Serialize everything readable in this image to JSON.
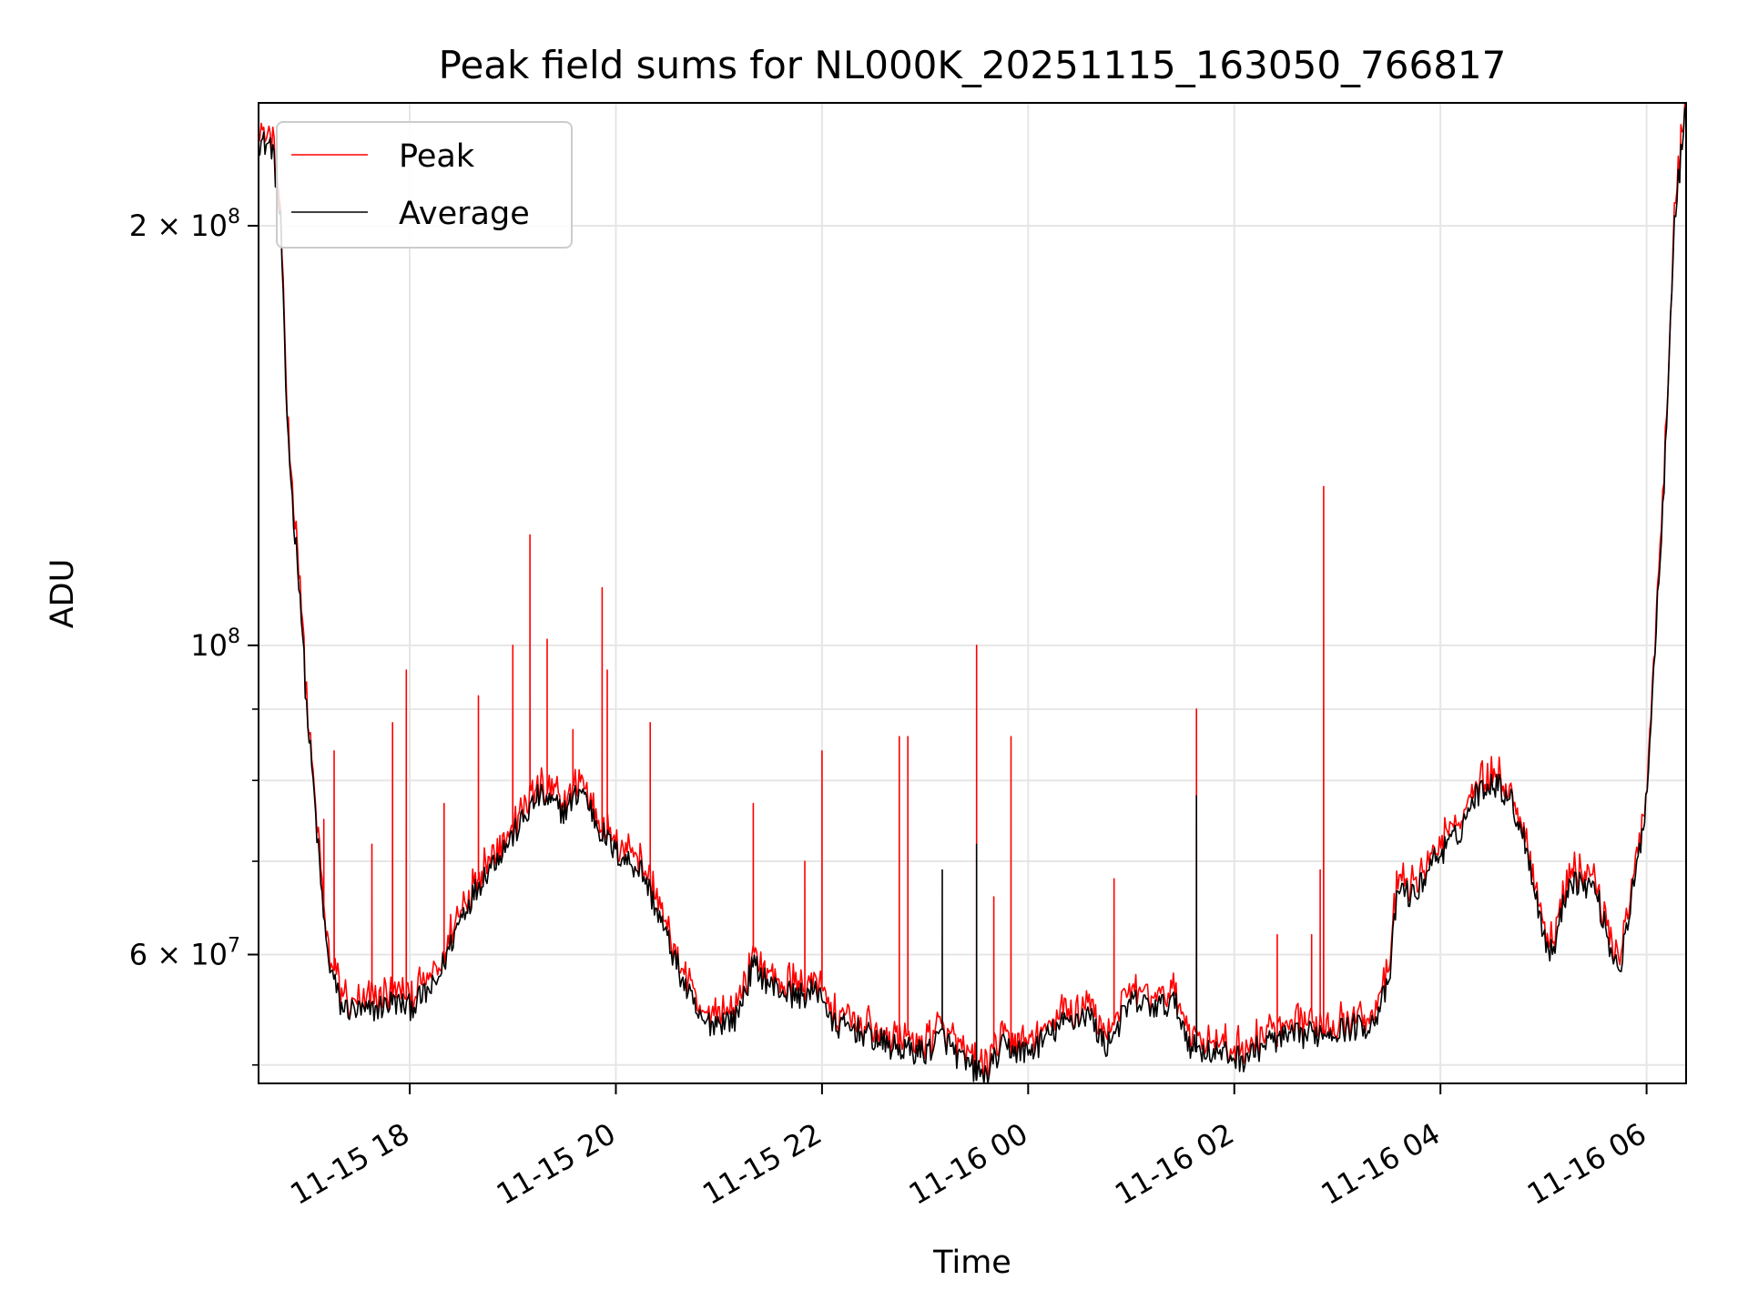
{
  "chart_data": {
    "type": "line",
    "title": "Peak field sums for NL000K_20251115_163050_766817",
    "xlabel": "Time",
    "ylabel": "ADU",
    "yscale": "log",
    "xlim": [
      "2025-11-15 16:32",
      "2025-11-16 06:23"
    ],
    "ylim": [
      48500000,
      245000000
    ],
    "grid": true,
    "legend_position": "upper-left",
    "x_ticks": [
      {
        "t": "2025-11-15 18:00",
        "label": "11-15 18"
      },
      {
        "t": "2025-11-15 20:00",
        "label": "11-15 20"
      },
      {
        "t": "2025-11-15 22:00",
        "label": "11-15 22"
      },
      {
        "t": "2025-11-16 00:00",
        "label": "11-16 00"
      },
      {
        "t": "2025-11-16 02:00",
        "label": "11-16 02"
      },
      {
        "t": "2025-11-16 04:00",
        "label": "11-16 04"
      },
      {
        "t": "2025-11-16 06:00",
        "label": "11-16 06"
      }
    ],
    "y_major_ticks": [
      {
        "value": 60000000,
        "mantissa": "6",
        "label": "6 × 10^7"
      },
      {
        "value": 100000000,
        "mantissa": "",
        "label": "10^8"
      },
      {
        "value": 200000000,
        "mantissa": "2",
        "label": "2 × 10^8"
      }
    ],
    "y_minor_ticks": [
      50000000,
      70000000,
      80000000,
      90000000
    ],
    "series": [
      {
        "name": "Peak",
        "color": "#ff0000",
        "anchors": [
          [
            "2025-11-15 16:32",
            230000000
          ],
          [
            "2025-11-15 16:40",
            228000000
          ],
          [
            "2025-11-15 16:45",
            200000000
          ],
          [
            "2025-11-15 16:48",
            150000000
          ],
          [
            "2025-11-15 16:52",
            125000000
          ],
          [
            "2025-11-15 16:56",
            110000000
          ],
          [
            "2025-11-15 17:00",
            90000000
          ],
          [
            "2025-11-15 17:04",
            79000000
          ],
          [
            "2025-11-15 17:08",
            68000000
          ],
          [
            "2025-11-15 17:12",
            60000000
          ],
          [
            "2025-11-15 17:20",
            55000000
          ],
          [
            "2025-11-15 17:35",
            54500000
          ],
          [
            "2025-11-15 17:50",
            55500000
          ],
          [
            "2025-11-15 18:00",
            55000000
          ],
          [
            "2025-11-15 18:15",
            57000000
          ],
          [
            "2025-11-15 18:30",
            64000000
          ],
          [
            "2025-11-15 18:45",
            69000000
          ],
          [
            "2025-11-15 19:00",
            73000000
          ],
          [
            "2025-11-15 19:15",
            78000000
          ],
          [
            "2025-11-15 19:30",
            76000000
          ],
          [
            "2025-11-15 19:40",
            79000000
          ],
          [
            "2025-11-15 19:50",
            74000000
          ],
          [
            "2025-11-15 20:00",
            71000000
          ],
          [
            "2025-11-15 20:15",
            69000000
          ],
          [
            "2025-11-15 20:25",
            64000000
          ],
          [
            "2025-11-15 20:40",
            57000000
          ],
          [
            "2025-11-15 20:50",
            53500000
          ],
          [
            "2025-11-15 21:10",
            54000000
          ],
          [
            "2025-11-15 21:20",
            59000000
          ],
          [
            "2025-11-15 21:30",
            57000000
          ],
          [
            "2025-11-15 21:45",
            56000000
          ],
          [
            "2025-11-15 22:00",
            56500000
          ],
          [
            "2025-11-15 22:05",
            53500000
          ],
          [
            "2025-11-15 22:20",
            53000000
          ],
          [
            "2025-11-15 22:40",
            51500000
          ],
          [
            "2025-11-15 23:00",
            51000000
          ],
          [
            "2025-11-15 23:10",
            52500000
          ],
          [
            "2025-11-15 23:20",
            50500000
          ],
          [
            "2025-11-15 23:35",
            49000000
          ],
          [
            "2025-11-15 23:45",
            51500000
          ],
          [
            "2025-11-16 00:00",
            51000000
          ],
          [
            "2025-11-16 00:20",
            53500000
          ],
          [
            "2025-11-16 00:35",
            54500000
          ],
          [
            "2025-11-16 00:45",
            51500000
          ],
          [
            "2025-11-16 01:00",
            55500000
          ],
          [
            "2025-11-16 01:15",
            55000000
          ],
          [
            "2025-11-16 01:25",
            55500000
          ],
          [
            "2025-11-16 01:35",
            51500000
          ],
          [
            "2025-11-16 01:50",
            51000000
          ],
          [
            "2025-11-16 02:05",
            50500000
          ],
          [
            "2025-11-16 02:20",
            52000000
          ],
          [
            "2025-11-16 02:40",
            52500000
          ],
          [
            "2025-11-16 03:00",
            53000000
          ],
          [
            "2025-11-16 03:20",
            53500000
          ],
          [
            "2025-11-16 03:30",
            57000000
          ],
          [
            "2025-11-16 03:35",
            67000000
          ],
          [
            "2025-11-16 03:45",
            66000000
          ],
          [
            "2025-11-16 03:55",
            70000000
          ],
          [
            "2025-11-16 04:10",
            73000000
          ],
          [
            "2025-11-16 04:20",
            78000000
          ],
          [
            "2025-11-16 04:30",
            80000000
          ],
          [
            "2025-11-16 04:40",
            78000000
          ],
          [
            "2025-11-16 04:50",
            72000000
          ],
          [
            "2025-11-16 05:00",
            62000000
          ],
          [
            "2025-11-16 05:05",
            60000000
          ],
          [
            "2025-11-16 05:15",
            68000000
          ],
          [
            "2025-11-16 05:30",
            67000000
          ],
          [
            "2025-11-16 05:40",
            60000000
          ],
          [
            "2025-11-16 05:45",
            59000000
          ],
          [
            "2025-11-16 05:55",
            70000000
          ],
          [
            "2025-11-16 06:00",
            78000000
          ],
          [
            "2025-11-16 06:05",
            100000000
          ],
          [
            "2025-11-16 06:10",
            130000000
          ],
          [
            "2025-11-16 06:16",
            200000000
          ],
          [
            "2025-11-16 06:23",
            245000000
          ]
        ],
        "spikes": [
          [
            "2025-11-15 17:16",
            84000000
          ],
          [
            "2025-11-15 17:10",
            75000000
          ],
          [
            "2025-11-15 17:38",
            72000000
          ],
          [
            "2025-11-15 17:50",
            88000000
          ],
          [
            "2025-11-15 17:58",
            96000000
          ],
          [
            "2025-11-15 18:20",
            77000000
          ],
          [
            "2025-11-15 18:40",
            92000000
          ],
          [
            "2025-11-15 19:00",
            100000000
          ],
          [
            "2025-11-15 19:10",
            120000000
          ],
          [
            "2025-11-15 19:20",
            101000000
          ],
          [
            "2025-11-15 19:35",
            87000000
          ],
          [
            "2025-11-15 19:52",
            110000000
          ],
          [
            "2025-11-15 19:55",
            96000000
          ],
          [
            "2025-11-15 20:20",
            88000000
          ],
          [
            "2025-11-15 21:20",
            77000000
          ],
          [
            "2025-11-15 21:50",
            70000000
          ],
          [
            "2025-11-15 22:00",
            84000000
          ],
          [
            "2025-11-15 22:45",
            86000000
          ],
          [
            "2025-11-15 22:50",
            86000000
          ],
          [
            "2025-11-15 23:30",
            100000000
          ],
          [
            "2025-11-15 23:40",
            66000000
          ],
          [
            "2025-11-15 23:50",
            86000000
          ],
          [
            "2025-11-16 00:50",
            68000000
          ],
          [
            "2025-11-16 01:38",
            90000000
          ],
          [
            "2025-11-16 02:25",
            62000000
          ],
          [
            "2025-11-16 02:45",
            62000000
          ],
          [
            "2025-11-16 02:50",
            69000000
          ],
          [
            "2025-11-16 02:52",
            130000000
          ]
        ]
      },
      {
        "name": "Average",
        "color": "#000000",
        "anchors": [
          [
            "2025-11-15 16:32",
            230000000
          ],
          [
            "2025-11-15 16:40",
            228000000
          ],
          [
            "2025-11-15 16:45",
            200000000
          ],
          [
            "2025-11-15 16:48",
            150000000
          ],
          [
            "2025-11-15 16:52",
            125000000
          ],
          [
            "2025-11-15 16:56",
            110000000
          ],
          [
            "2025-11-15 17:00",
            90000000
          ],
          [
            "2025-11-15 17:04",
            79000000
          ],
          [
            "2025-11-15 17:08",
            68000000
          ],
          [
            "2025-11-15 17:12",
            60000000
          ],
          [
            "2025-11-15 17:20",
            55000000
          ],
          [
            "2025-11-15 17:35",
            54500000
          ],
          [
            "2025-11-15 17:50",
            55500000
          ],
          [
            "2025-11-15 18:00",
            55000000
          ],
          [
            "2025-11-15 18:15",
            57000000
          ],
          [
            "2025-11-15 18:30",
            64000000
          ],
          [
            "2025-11-15 18:45",
            69000000
          ],
          [
            "2025-11-15 19:00",
            73000000
          ],
          [
            "2025-11-15 19:15",
            78000000
          ],
          [
            "2025-11-15 19:30",
            76000000
          ],
          [
            "2025-11-15 19:40",
            79000000
          ],
          [
            "2025-11-15 19:50",
            74000000
          ],
          [
            "2025-11-15 20:00",
            71000000
          ],
          [
            "2025-11-15 20:15",
            69000000
          ],
          [
            "2025-11-15 20:25",
            64000000
          ],
          [
            "2025-11-15 20:40",
            57000000
          ],
          [
            "2025-11-15 20:50",
            53500000
          ],
          [
            "2025-11-15 21:10",
            54000000
          ],
          [
            "2025-11-15 21:20",
            59000000
          ],
          [
            "2025-11-15 21:30",
            57000000
          ],
          [
            "2025-11-15 21:45",
            56000000
          ],
          [
            "2025-11-15 22:00",
            56500000
          ],
          [
            "2025-11-15 22:05",
            53500000
          ],
          [
            "2025-11-15 22:20",
            53000000
          ],
          [
            "2025-11-15 22:40",
            51500000
          ],
          [
            "2025-11-15 23:00",
            51000000
          ],
          [
            "2025-11-15 23:10",
            52500000
          ],
          [
            "2025-11-15 23:20",
            50500000
          ],
          [
            "2025-11-15 23:35",
            49000000
          ],
          [
            "2025-11-15 23:45",
            51500000
          ],
          [
            "2025-11-16 00:00",
            51000000
          ],
          [
            "2025-11-16 00:20",
            53500000
          ],
          [
            "2025-11-16 00:35",
            54500000
          ],
          [
            "2025-11-16 00:45",
            51500000
          ],
          [
            "2025-11-16 01:00",
            55500000
          ],
          [
            "2025-11-16 01:15",
            55000000
          ],
          [
            "2025-11-16 01:25",
            55500000
          ],
          [
            "2025-11-16 01:35",
            51500000
          ],
          [
            "2025-11-16 01:50",
            51000000
          ],
          [
            "2025-11-16 02:05",
            50500000
          ],
          [
            "2025-11-16 02:20",
            52000000
          ],
          [
            "2025-11-16 02:40",
            52500000
          ],
          [
            "2025-11-16 03:00",
            53000000
          ],
          [
            "2025-11-16 03:20",
            53500000
          ],
          [
            "2025-11-16 03:30",
            57000000
          ],
          [
            "2025-11-16 03:35",
            67000000
          ],
          [
            "2025-11-16 03:45",
            66000000
          ],
          [
            "2025-11-16 03:55",
            70000000
          ],
          [
            "2025-11-16 04:10",
            73000000
          ],
          [
            "2025-11-16 04:20",
            78000000
          ],
          [
            "2025-11-16 04:30",
            80000000
          ],
          [
            "2025-11-16 04:40",
            78000000
          ],
          [
            "2025-11-16 04:50",
            72000000
          ],
          [
            "2025-11-16 05:00",
            62000000
          ],
          [
            "2025-11-16 05:05",
            60000000
          ],
          [
            "2025-11-16 05:15",
            68000000
          ],
          [
            "2025-11-16 05:30",
            67000000
          ],
          [
            "2025-11-16 05:40",
            60000000
          ],
          [
            "2025-11-16 05:45",
            59000000
          ],
          [
            "2025-11-16 05:55",
            70000000
          ],
          [
            "2025-11-16 06:00",
            78000000
          ],
          [
            "2025-11-16 06:05",
            100000000
          ],
          [
            "2025-11-16 06:10",
            130000000
          ],
          [
            "2025-11-16 06:16",
            200000000
          ],
          [
            "2025-11-16 06:23",
            245000000
          ]
        ],
        "spikes": [
          [
            "2025-11-15 23:10",
            69000000
          ],
          [
            "2025-11-15 23:30",
            72000000
          ],
          [
            "2025-11-16 01:38",
            78000000
          ]
        ]
      }
    ]
  }
}
